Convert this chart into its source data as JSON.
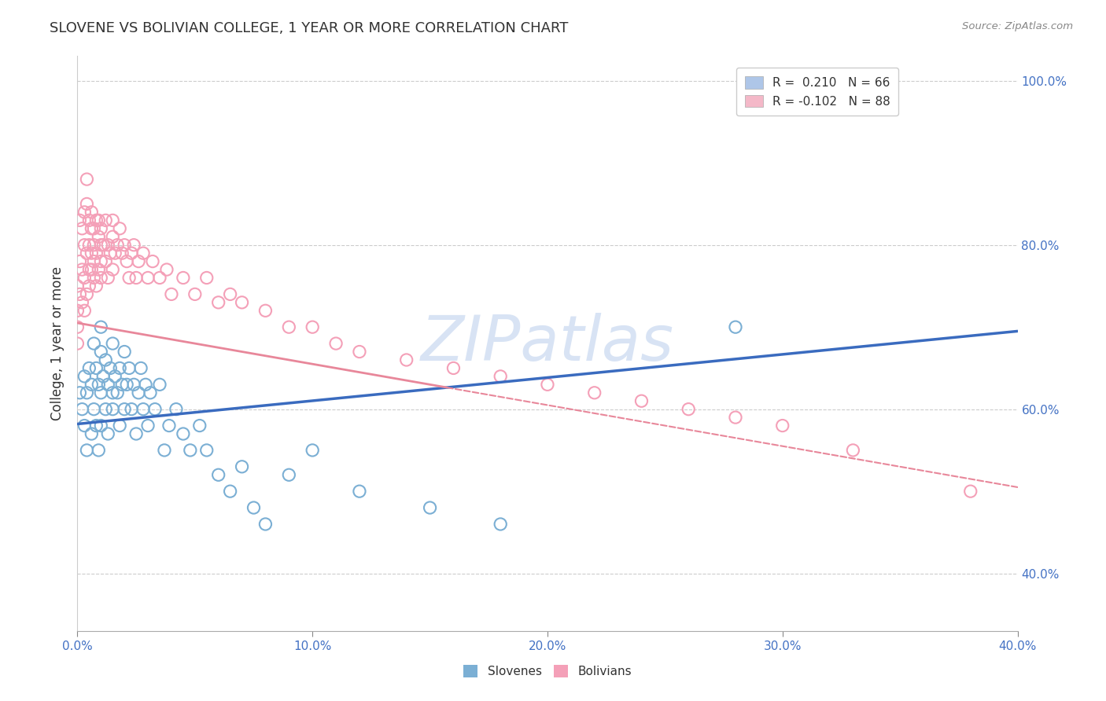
{
  "title": "SLOVENE VS BOLIVIAN COLLEGE, 1 YEAR OR MORE CORRELATION CHART",
  "source_text": "Source: ZipAtlas.com",
  "xlim": [
    0.0,
    0.4
  ],
  "ylim": [
    0.33,
    1.03
  ],
  "ylabel": "College, 1 year or more",
  "legend_entries": [
    {
      "label_r": "R =  0.210",
      "label_n": "N = 66",
      "color": "#aec6e8"
    },
    {
      "label_r": "R = -0.102",
      "label_n": "N = 88",
      "color": "#f4b8c8"
    }
  ],
  "slovene_color": "#7bafd4",
  "bolivian_color": "#f4a0b8",
  "trendline_slovene_color": "#3a6bbf",
  "trendline_bolivian_color": "#e8879a",
  "watermark": "ZIPatlas",
  "watermark_color": "#c8d8f0",
  "slovene_x": [
    0.001,
    0.002,
    0.003,
    0.003,
    0.004,
    0.004,
    0.005,
    0.006,
    0.006,
    0.007,
    0.007,
    0.008,
    0.008,
    0.009,
    0.009,
    0.01,
    0.01,
    0.01,
    0.01,
    0.011,
    0.012,
    0.012,
    0.013,
    0.013,
    0.014,
    0.015,
    0.015,
    0.015,
    0.016,
    0.017,
    0.018,
    0.018,
    0.019,
    0.02,
    0.02,
    0.021,
    0.022,
    0.023,
    0.024,
    0.025,
    0.026,
    0.027,
    0.028,
    0.029,
    0.03,
    0.031,
    0.033,
    0.035,
    0.037,
    0.039,
    0.042,
    0.045,
    0.048,
    0.052,
    0.055,
    0.06,
    0.065,
    0.07,
    0.075,
    0.08,
    0.09,
    0.1,
    0.12,
    0.15,
    0.18,
    0.28
  ],
  "slovene_y": [
    0.62,
    0.6,
    0.64,
    0.58,
    0.62,
    0.55,
    0.65,
    0.63,
    0.57,
    0.68,
    0.6,
    0.65,
    0.58,
    0.63,
    0.55,
    0.67,
    0.62,
    0.58,
    0.7,
    0.64,
    0.6,
    0.66,
    0.63,
    0.57,
    0.65,
    0.62,
    0.68,
    0.6,
    0.64,
    0.62,
    0.65,
    0.58,
    0.63,
    0.6,
    0.67,
    0.63,
    0.65,
    0.6,
    0.63,
    0.57,
    0.62,
    0.65,
    0.6,
    0.63,
    0.58,
    0.62,
    0.6,
    0.63,
    0.55,
    0.58,
    0.6,
    0.57,
    0.55,
    0.58,
    0.55,
    0.52,
    0.5,
    0.53,
    0.48,
    0.46,
    0.52,
    0.55,
    0.5,
    0.48,
    0.46,
    0.7
  ],
  "bolivian_x": [
    0.0,
    0.0,
    0.0,
    0.0,
    0.001,
    0.001,
    0.001,
    0.002,
    0.002,
    0.002,
    0.003,
    0.003,
    0.003,
    0.003,
    0.004,
    0.004,
    0.004,
    0.004,
    0.005,
    0.005,
    0.005,
    0.005,
    0.006,
    0.006,
    0.006,
    0.006,
    0.007,
    0.007,
    0.007,
    0.007,
    0.008,
    0.008,
    0.008,
    0.009,
    0.009,
    0.009,
    0.01,
    0.01,
    0.01,
    0.01,
    0.011,
    0.012,
    0.012,
    0.013,
    0.013,
    0.014,
    0.015,
    0.015,
    0.015,
    0.016,
    0.017,
    0.018,
    0.019,
    0.02,
    0.021,
    0.022,
    0.023,
    0.024,
    0.025,
    0.026,
    0.028,
    0.03,
    0.032,
    0.035,
    0.038,
    0.04,
    0.045,
    0.05,
    0.055,
    0.06,
    0.065,
    0.07,
    0.08,
    0.09,
    0.1,
    0.11,
    0.12,
    0.14,
    0.16,
    0.18,
    0.2,
    0.22,
    0.24,
    0.26,
    0.28,
    0.3,
    0.33,
    0.38
  ],
  "bolivian_y": [
    0.7,
    0.72,
    0.75,
    0.68,
    0.74,
    0.78,
    0.83,
    0.73,
    0.77,
    0.82,
    0.8,
    0.76,
    0.84,
    0.72,
    0.85,
    0.79,
    0.74,
    0.88,
    0.8,
    0.77,
    0.83,
    0.75,
    0.79,
    0.82,
    0.77,
    0.84,
    0.8,
    0.76,
    0.82,
    0.78,
    0.83,
    0.79,
    0.75,
    0.81,
    0.77,
    0.83,
    0.8,
    0.76,
    0.82,
    0.78,
    0.8,
    0.83,
    0.78,
    0.8,
    0.76,
    0.79,
    0.81,
    0.77,
    0.83,
    0.79,
    0.8,
    0.82,
    0.79,
    0.8,
    0.78,
    0.76,
    0.79,
    0.8,
    0.76,
    0.78,
    0.79,
    0.76,
    0.78,
    0.76,
    0.77,
    0.74,
    0.76,
    0.74,
    0.76,
    0.73,
    0.74,
    0.73,
    0.72,
    0.7,
    0.7,
    0.68,
    0.67,
    0.66,
    0.65,
    0.64,
    0.63,
    0.62,
    0.61,
    0.6,
    0.59,
    0.58,
    0.55,
    0.5
  ],
  "trendline_slovene_x0": 0.0,
  "trendline_slovene_y0": 0.582,
  "trendline_slovene_x1": 0.4,
  "trendline_slovene_y1": 0.695,
  "trendline_bolivian_x0": 0.0,
  "trendline_bolivian_y0": 0.705,
  "trendline_bolivian_x1": 0.4,
  "trendline_bolivian_y1": 0.505,
  "background_color": "#ffffff",
  "grid_color": "#cccccc"
}
